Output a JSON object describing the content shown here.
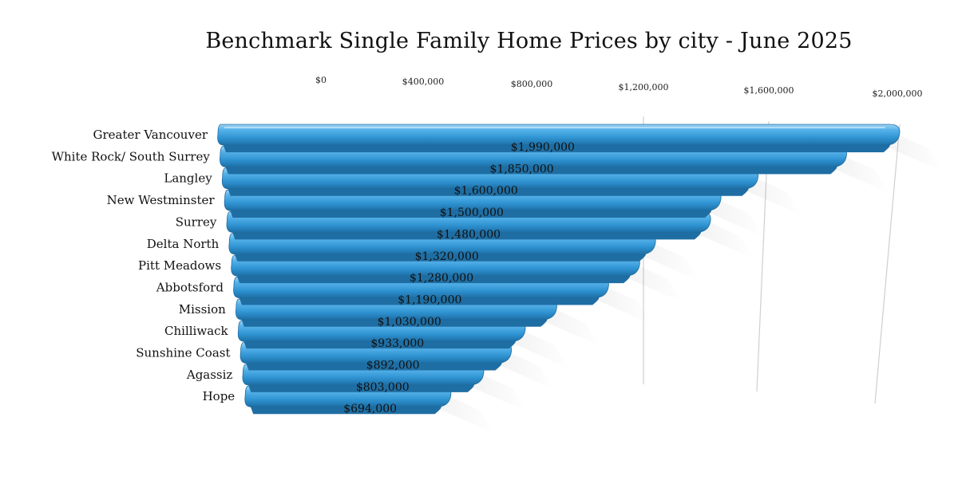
{
  "chart_data": {
    "type": "bar",
    "orientation": "horizontal",
    "title": "Benchmark Single Family Home Prices by city - June 2025",
    "xlabel": "",
    "ylabel": "",
    "xlim": [
      0,
      2000000
    ],
    "tick_values": [
      0,
      400000,
      800000,
      1200000,
      1600000,
      2000000
    ],
    "tick_labels": [
      "$0",
      "$400,000",
      "$800,000",
      "$1,200,000",
      "$1,600,000",
      "$2,000,000"
    ],
    "grid": true,
    "legend": "none",
    "bar_color": "#3a9ad6",
    "categories": [
      "Greater Vancouver",
      "White Rock/ South Surrey",
      "Langley",
      "New Westminster",
      "Surrey",
      "Delta North",
      "Pitt Meadows",
      "Abbotsford",
      "Mission",
      "Chilliwack",
      "Sunshine Coast",
      "Agassiz",
      "Hope"
    ],
    "values": [
      1990000,
      1850000,
      1600000,
      1500000,
      1480000,
      1320000,
      1280000,
      1190000,
      1030000,
      933000,
      892000,
      803000,
      694000
    ],
    "value_labels": [
      "$1,990,000",
      "$1,850,000",
      "$1,600,000",
      "$1,500,000",
      "$1,480,000",
      "$1,320,000",
      "$1,280,000",
      "$1,190,000",
      "$1,030,000",
      "$933,000",
      "$892,000",
      "$803,000",
      "$694,000"
    ]
  }
}
